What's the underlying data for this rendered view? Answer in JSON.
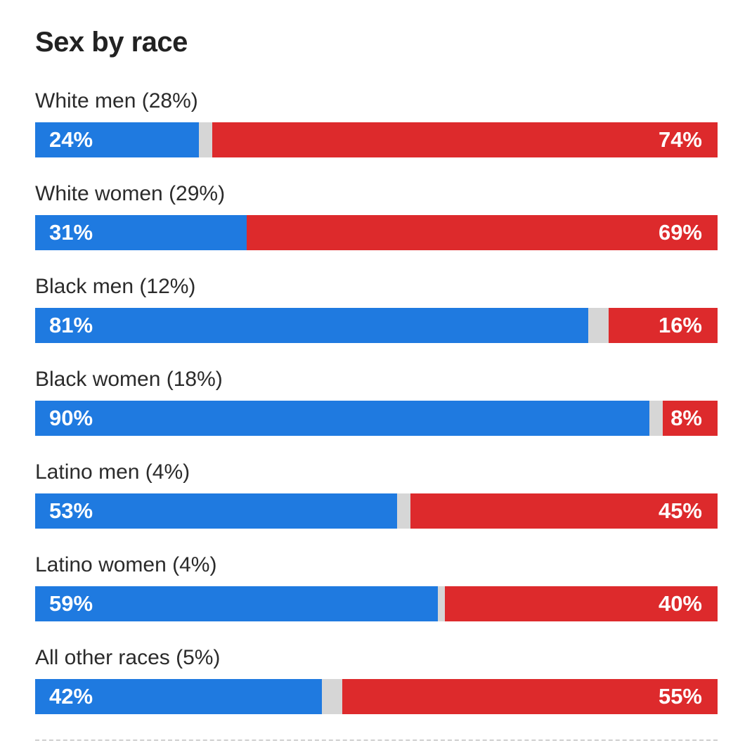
{
  "colors": {
    "democrat": "#1f7ae0",
    "republican": "#dd2a2c",
    "other": "#d6d6d6"
  },
  "chart_data": {
    "type": "bar",
    "title": "Sex by race",
    "xlabel": "",
    "ylabel": "",
    "ylim": [
      0,
      100
    ],
    "grid": false,
    "categories": [
      "White men (28%)",
      "White women (29%)",
      "Black men (12%)",
      "Black women (18%)",
      "Latino men (4%)",
      "Latino women (4%)",
      "All other races (5%)"
    ],
    "rows": [
      {
        "label": "White men (28%)",
        "blue": 24,
        "red": 74,
        "blue_label": "24%",
        "red_label": "74%"
      },
      {
        "label": "White women (29%)",
        "blue": 31,
        "red": 69,
        "blue_label": "31%",
        "red_label": "69%"
      },
      {
        "label": "Black men (12%)",
        "blue": 81,
        "red": 16,
        "blue_label": "81%",
        "red_label": "16%"
      },
      {
        "label": "Black women (18%)",
        "blue": 90,
        "red": 8,
        "blue_label": "90%",
        "red_label": "8%"
      },
      {
        "label": "Latino men (4%)",
        "blue": 53,
        "red": 45,
        "blue_label": "53%",
        "red_label": "45%"
      },
      {
        "label": "Latino women (4%)",
        "blue": 59,
        "red": 40,
        "blue_label": "59%",
        "red_label": "40%"
      },
      {
        "label": "All other races (5%)",
        "blue": 42,
        "red": 55,
        "blue_label": "42%",
        "red_label": "55%"
      }
    ]
  }
}
